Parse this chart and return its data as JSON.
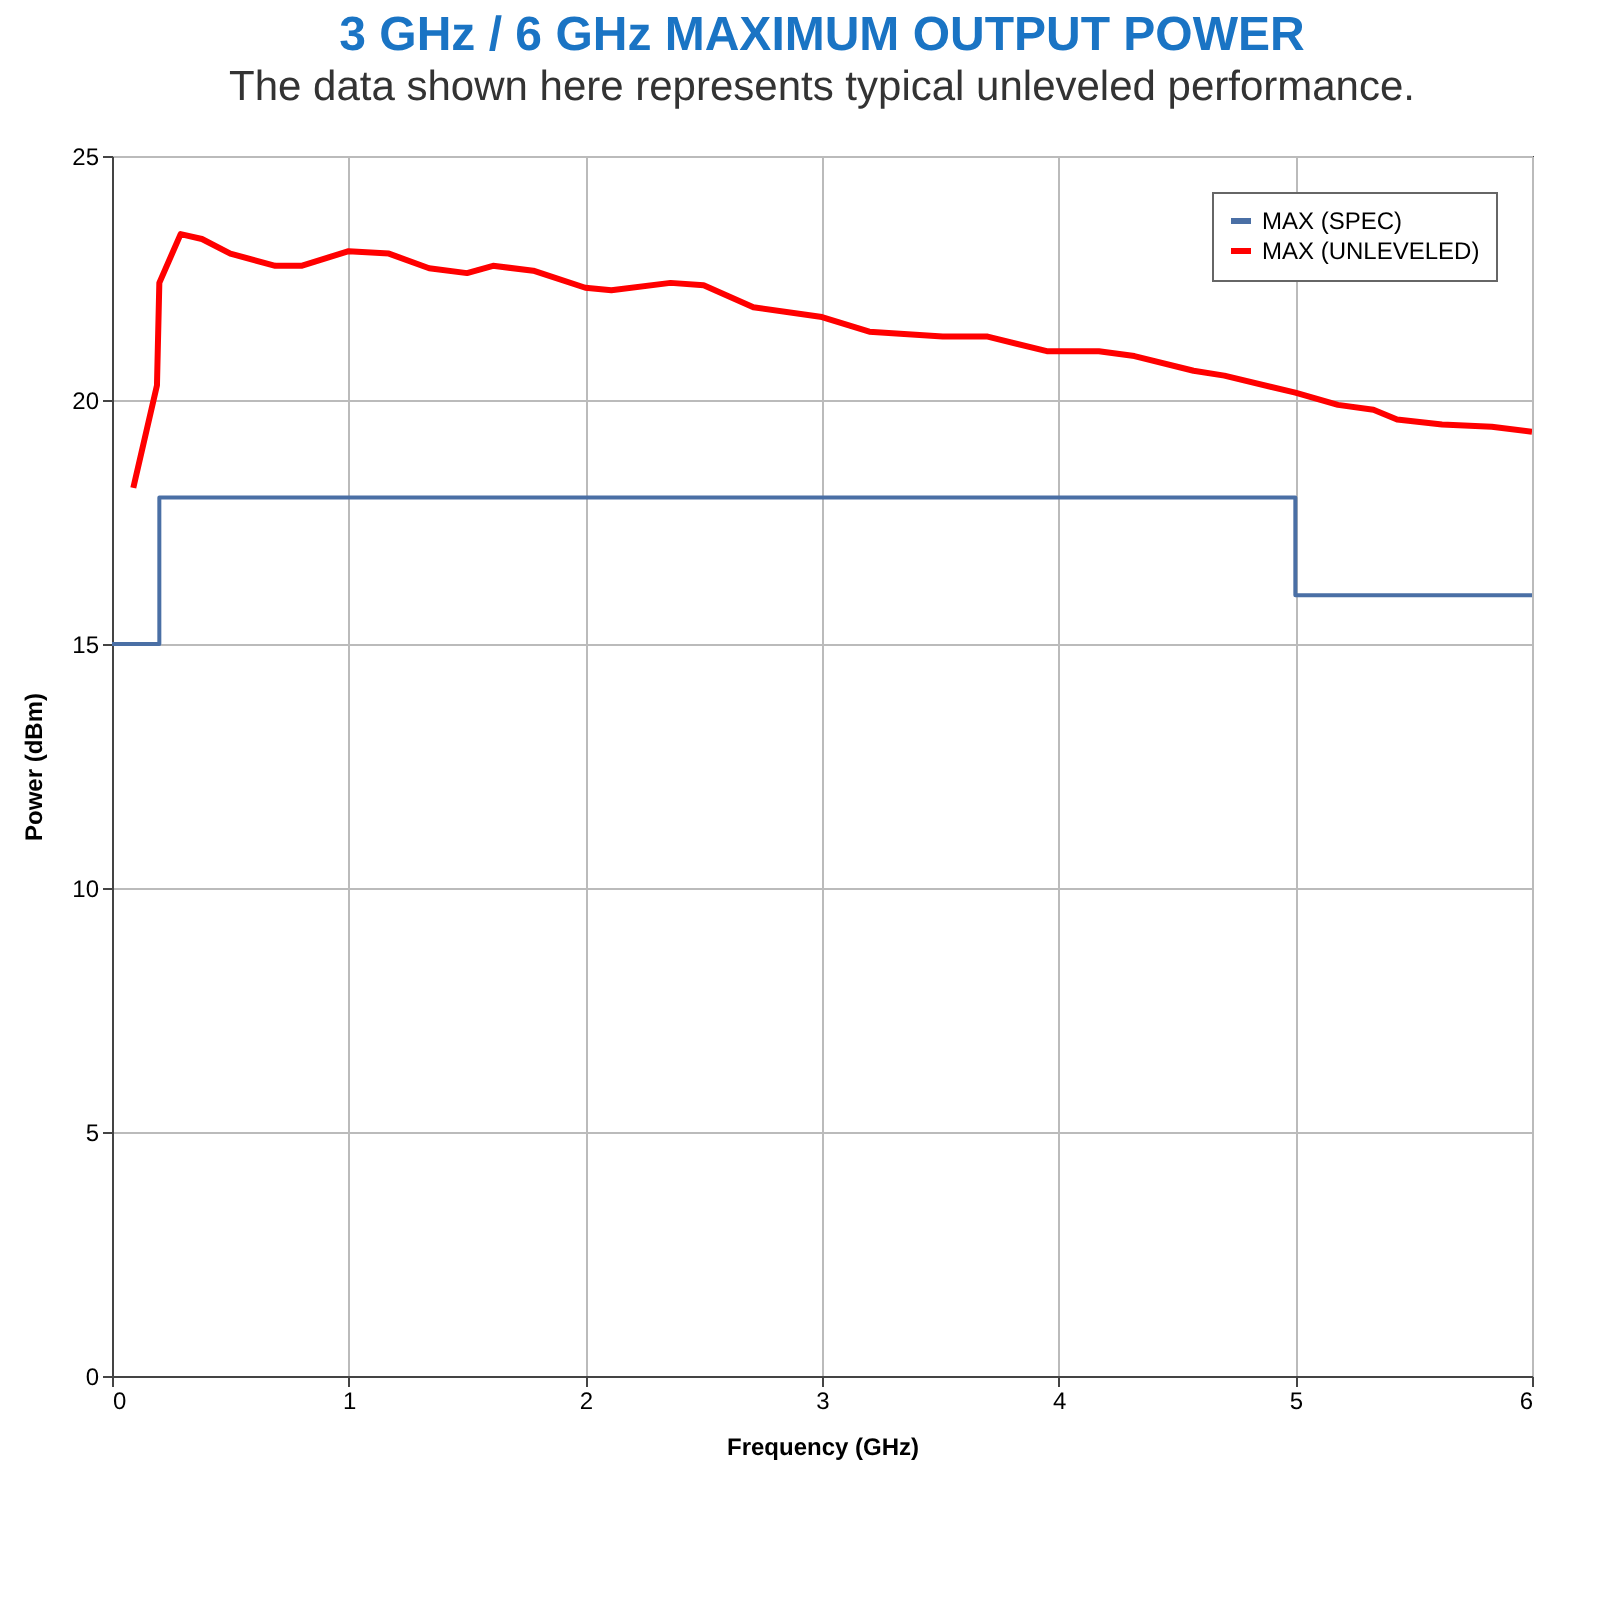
{
  "chart_data": {
    "type": "line",
    "title": "3 GHz / 6 GHz MAXIMUM OUTPUT POWER",
    "subtitle": "The data shown here represents typical unleveled performance.",
    "xlabel": "Frequency (GHz)",
    "ylabel": "Power (dBm)",
    "xlim": [
      0,
      6
    ],
    "xticks": [
      0,
      1,
      2,
      3,
      4,
      5,
      6
    ],
    "ylim": [
      0,
      25
    ],
    "yticks": [
      0,
      5,
      10,
      15,
      20,
      25
    ],
    "grid": true,
    "legend": "top right",
    "series": [
      {
        "name": "MAX (SPEC)",
        "type": "step",
        "color": "#4a6fa5",
        "x": [
          0,
          0.2,
          5,
          6
        ],
        "values": [
          15,
          18,
          16,
          16
        ]
      },
      {
        "name": "MAX (UNLEVELED)",
        "type": "line",
        "color": "#ff0000",
        "x": [
          0.09,
          0.19,
          0.2,
          0.29,
          0.38,
          0.5,
          0.69,
          0.8,
          1.0,
          1.17,
          1.34,
          1.5,
          1.61,
          1.78,
          2.0,
          2.11,
          2.36,
          2.5,
          2.71,
          3.0,
          3.2,
          3.51,
          3.7,
          3.95,
          4.17,
          4.32,
          4.57,
          4.7,
          5.0,
          5.18,
          5.33,
          5.43,
          5.62,
          5.83,
          6.0
        ],
        "values": [
          18.2,
          20.3,
          22.4,
          23.4,
          23.3,
          23.0,
          22.75,
          22.75,
          23.05,
          23.0,
          22.7,
          22.6,
          22.75,
          22.65,
          22.3,
          22.25,
          22.4,
          22.35,
          21.9,
          21.7,
          21.4,
          21.3,
          21.3,
          21.0,
          21.0,
          20.9,
          20.6,
          20.5,
          20.15,
          19.9,
          19.8,
          19.6,
          19.5,
          19.45,
          19.35
        ]
      }
    ]
  }
}
